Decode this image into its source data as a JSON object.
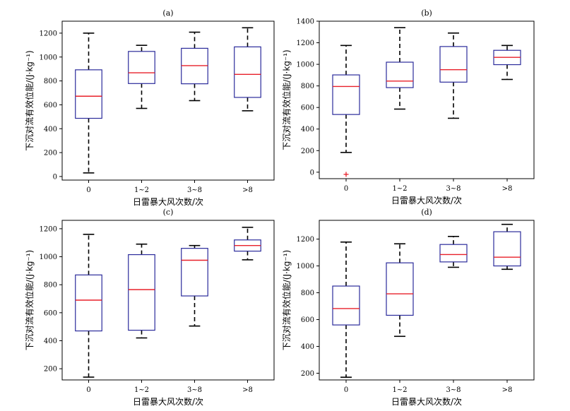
{
  "figure": {
    "xlabel": "日雷暴大风次数/次",
    "ylabel": "下沉对流有效位能/(J·kg⁻¹)"
  },
  "colors": {
    "box": "#2b2b9b",
    "median": "#e8202a",
    "whisker": "#000000",
    "outlier": "#e8202a"
  },
  "chart_data": [
    {
      "type": "box",
      "title": "(a)",
      "xlabel": "日雷暴大风次数/次",
      "ylabel": "下沉对流有效位能/(J·kg⁻¹)",
      "categories": [
        "0",
        "1~2",
        "3~8",
        ">8"
      ],
      "ylim": [
        -30,
        1300
      ],
      "yticks": [
        0,
        200,
        400,
        600,
        800,
        1000,
        1200
      ],
      "boxes": [
        {
          "min": 30,
          "q1": 487,
          "median": 672,
          "q3": 893,
          "max": 1200
        },
        {
          "min": 570,
          "q1": 778,
          "median": 868,
          "q3": 1047,
          "max": 1098
        },
        {
          "min": 635,
          "q1": 776,
          "median": 928,
          "q3": 1073,
          "max": 1208
        },
        {
          "min": 550,
          "q1": 662,
          "median": 855,
          "q3": 1085,
          "max": 1245
        }
      ],
      "outliers": []
    },
    {
      "type": "box",
      "title": "(b)",
      "xlabel": "日雷暴大风次数/次",
      "ylabel": "下沉对流有效位能/(J·kg⁻¹)",
      "categories": [
        "0",
        "1~2",
        "3~8",
        ">8"
      ],
      "ylim": [
        -60,
        1400
      ],
      "yticks": [
        0,
        200,
        400,
        600,
        800,
        1000,
        1200,
        1400
      ],
      "boxes": [
        {
          "min": 183,
          "q1": 535,
          "median": 795,
          "q3": 902,
          "max": 1175
        },
        {
          "min": 585,
          "q1": 784,
          "median": 845,
          "q3": 1020,
          "max": 1340
        },
        {
          "min": 500,
          "q1": 835,
          "median": 950,
          "q3": 1165,
          "max": 1290
        },
        {
          "min": 860,
          "q1": 997,
          "median": 1065,
          "q3": 1130,
          "max": 1175
        }
      ],
      "outliers": [
        {
          "category": "0",
          "value": -20
        }
      ]
    },
    {
      "type": "box",
      "title": "(c)",
      "xlabel": "日雷暴大风次数/次",
      "ylabel": "下沉对流有效位能/(J·kg⁻¹)",
      "categories": [
        "0",
        "1~2",
        "3~8",
        ">8"
      ],
      "ylim": [
        120,
        1260
      ],
      "yticks": [
        200,
        400,
        600,
        800,
        1000,
        1200
      ],
      "boxes": [
        {
          "min": 140,
          "q1": 470,
          "median": 690,
          "q3": 870,
          "max": 1160
        },
        {
          "min": 420,
          "q1": 475,
          "median": 765,
          "q3": 1015,
          "max": 1090
        },
        {
          "min": 505,
          "q1": 720,
          "median": 975,
          "q3": 1060,
          "max": 1080
        },
        {
          "min": 978,
          "q1": 1040,
          "median": 1080,
          "q3": 1120,
          "max": 1210
        }
      ],
      "outliers": []
    },
    {
      "type": "box",
      "title": "(d)",
      "xlabel": "日雷暴大风次数/次",
      "ylabel": "下沉对流有效位能/(J·kg⁻¹)",
      "categories": [
        "0",
        "1~2",
        "3~8",
        ">8"
      ],
      "ylim": [
        150,
        1340
      ],
      "yticks": [
        200,
        400,
        600,
        800,
        1000,
        1200
      ],
      "boxes": [
        {
          "min": 170,
          "q1": 560,
          "median": 682,
          "q3": 850,
          "max": 1178
        },
        {
          "min": 475,
          "q1": 632,
          "median": 792,
          "q3": 1023,
          "max": 1165
        },
        {
          "min": 990,
          "q1": 1030,
          "median": 1085,
          "q3": 1160,
          "max": 1220
        },
        {
          "min": 975,
          "q1": 1000,
          "median": 1065,
          "q3": 1255,
          "max": 1310
        }
      ],
      "outliers": []
    }
  ]
}
